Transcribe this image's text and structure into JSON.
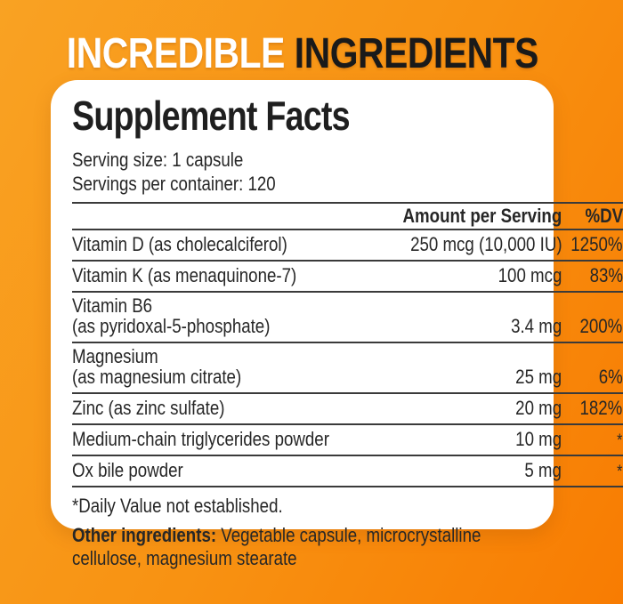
{
  "colors": {
    "bg_gradient_start": "#F9A223",
    "bg_gradient_end": "#F87C02",
    "hero_word1_color": "#FFFFFF",
    "hero_word2_color": "#1A1A1A",
    "card_background": "#FFFFFF",
    "text_color": "#272727",
    "rule_color": "#3A3A3A"
  },
  "hero": {
    "word1": "INCREDIBLE",
    "word2": "INGREDIENTS"
  },
  "panel": {
    "title": "Supplement Facts",
    "serving_size": "Serving size: 1 capsule",
    "servings_per_container": "Servings per container: 120",
    "table": {
      "amount_header": "Amount per Serving",
      "dv_header": "%DV",
      "rows": [
        {
          "name": "Vitamin D (as cholecalciferol)",
          "name_line2": "",
          "amount": "250 mcg (10,000 IU)",
          "dv": "1250%"
        },
        {
          "name": "Vitamin K (as menaquinone-7)",
          "name_line2": "",
          "amount": "100 mcg",
          "dv": "83%"
        },
        {
          "name": "Vitamin B6",
          "name_line2": "(as pyridoxal-5-phosphate)",
          "amount": "3.4 mg",
          "dv": "200%"
        },
        {
          "name": "Magnesium",
          "name_line2": "(as magnesium citrate)",
          "amount": "25 mg",
          "dv": "6%"
        },
        {
          "name": "Zinc (as zinc sulfate)",
          "name_line2": "",
          "amount": "20 mg",
          "dv": "182%"
        },
        {
          "name": "Medium-chain triglycerides powder",
          "name_line2": "",
          "amount": "10 mg",
          "dv": "*"
        },
        {
          "name": "Ox bile powder",
          "name_line2": "",
          "amount": "5 mg",
          "dv": "*"
        }
      ]
    },
    "footnote": "*Daily Value not established.",
    "other_ingredients": {
      "label": "Other ingredients:",
      "text": "Vegetable capsule, microcrystalline cellulose, magnesium stearate"
    }
  }
}
